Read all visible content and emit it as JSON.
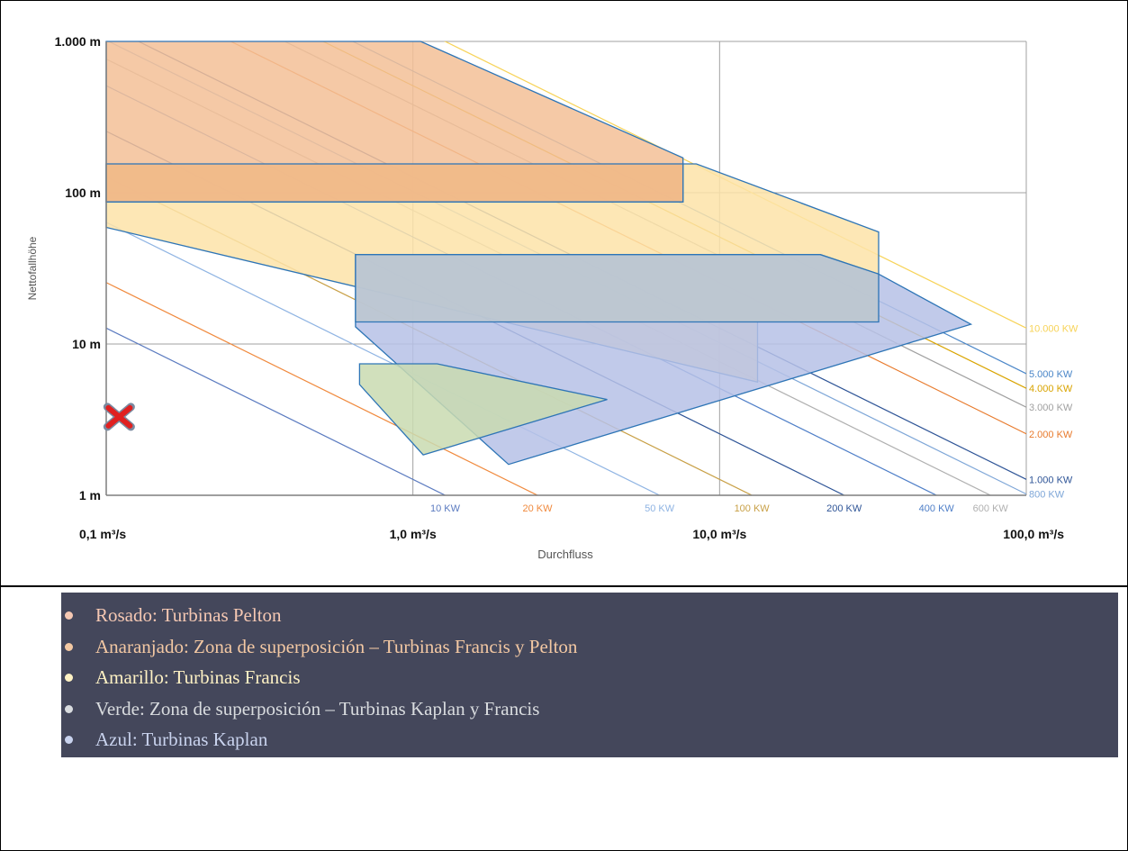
{
  "chart_data": {
    "type": "area",
    "xlabel": "Durchfluss",
    "ylabel": "Nettofallhöhe",
    "x_scale": "log",
    "y_scale": "log",
    "xlim": [
      0.1,
      100
    ],
    "ylim": [
      1,
      1000
    ],
    "x_ticks": [
      {
        "value": 0.1,
        "label": "0,1 m³/s"
      },
      {
        "value": 1,
        "label": "1,0 m³/s"
      },
      {
        "value": 10,
        "label": "10,0 m³/s"
      },
      {
        "value": 100,
        "label": "100,0 m³/s"
      }
    ],
    "y_ticks": [
      {
        "value": 1,
        "label": "1 m"
      },
      {
        "value": 10,
        "label": "10 m"
      },
      {
        "value": 100,
        "label": "100 m"
      },
      {
        "value": 1000,
        "label": "1.000 m"
      }
    ],
    "power_lines": [
      {
        "label": "10 KW",
        "kw": 10,
        "color": "#5b7bc0"
      },
      {
        "label": "20 KW",
        "kw": 20,
        "color": "#f08a3e"
      },
      {
        "label": "50 KW",
        "kw": 50,
        "color": "#8fb4e3"
      },
      {
        "label": "100 KW",
        "kw": 100,
        "color": "#c8a046"
      },
      {
        "label": "200 KW",
        "kw": 200,
        "color": "#2f5597"
      },
      {
        "label": "400 KW",
        "kw": 400,
        "color": "#4f7fc8"
      },
      {
        "label": "600 KW",
        "kw": 600,
        "color": "#b0b0b0"
      },
      {
        "label": "800 KW",
        "kw": 800,
        "color": "#7fa7d8"
      },
      {
        "label": "1.000 KW",
        "kw": 1000,
        "color": "#2f5597"
      },
      {
        "label": "2.000 KW",
        "kw": 2000,
        "color": "#e87a2c"
      },
      {
        "label": "3.000 KW",
        "kw": 3000,
        "color": "#a0a0a0"
      },
      {
        "label": "4.000 KW",
        "kw": 4000,
        "color": "#d9a400"
      },
      {
        "label": "5.000 KW",
        "kw": 5000,
        "color": "#4a86c8"
      },
      {
        "label": "10.000 KW",
        "kw": 10000,
        "color": "#f7d358"
      }
    ],
    "regions": [
      {
        "name": "Francis",
        "color": "#fde3a8",
        "points": [
          [
            0.1,
            59
          ],
          [
            0.1,
            155
          ],
          [
            8.4,
            155
          ],
          [
            33,
            55
          ],
          [
            33,
            14
          ],
          [
            13.3,
            14
          ],
          [
            13.3,
            5.6
          ]
        ]
      },
      {
        "name": "Pelton",
        "color": "#f3c096",
        "points": [
          [
            0.1,
            1000
          ],
          [
            0.16,
            1000
          ],
          [
            1.06,
            1000
          ],
          [
            7.6,
            170
          ],
          [
            7.6,
            87
          ],
          [
            0.1,
            87
          ]
        ]
      },
      {
        "name": "Francis-Pelton",
        "color": "#f0b987",
        "points": [
          [
            0.1,
            155
          ],
          [
            7.6,
            155
          ],
          [
            7.6,
            87
          ],
          [
            0.1,
            87
          ]
        ]
      },
      {
        "name": "Kaplan",
        "color": "#b6c1e6",
        "points": [
          [
            0.65,
            39
          ],
          [
            21.3,
            39
          ],
          [
            33,
            29
          ],
          [
            66,
            13.5
          ],
          [
            2.05,
            1.6
          ],
          [
            0.65,
            13
          ]
        ]
      },
      {
        "name": "Kaplan-Francis",
        "color": "#bcc7cf",
        "points": [
          [
            0.65,
            39
          ],
          [
            21.3,
            39
          ],
          [
            33,
            29
          ],
          [
            33,
            14
          ],
          [
            0.65,
            14
          ]
        ]
      },
      {
        "name": "Kaplan-Francis-green",
        "color": "#c9dbb0",
        "points": [
          [
            0.67,
            7.4
          ],
          [
            1.2,
            7.4
          ],
          [
            4.3,
            4.3
          ],
          [
            1.08,
            1.85
          ],
          [
            0.67,
            5.4
          ]
        ]
      }
    ],
    "annotations": [
      {
        "type": "cross-marker",
        "x": 0.103,
        "y": 3.3,
        "color": "#e02020"
      }
    ]
  },
  "legend": [
    {
      "label": "Rosado: Turbinas Pelton",
      "color": "#f5c8b3"
    },
    {
      "label": "Anaranjado: Zona de superposición – Turbinas Francis y Pelton",
      "color": "#f3c8a3"
    },
    {
      "label": "Amarillo: Turbinas Francis",
      "color": "#fff2c4"
    },
    {
      "label": "Verde: Zona de superposición – Turbinas Kaplan y Francis",
      "color": "#d9dcdf"
    },
    {
      "label": "Azul: Turbinas Kaplan",
      "color": "#c9d3ee"
    }
  ]
}
